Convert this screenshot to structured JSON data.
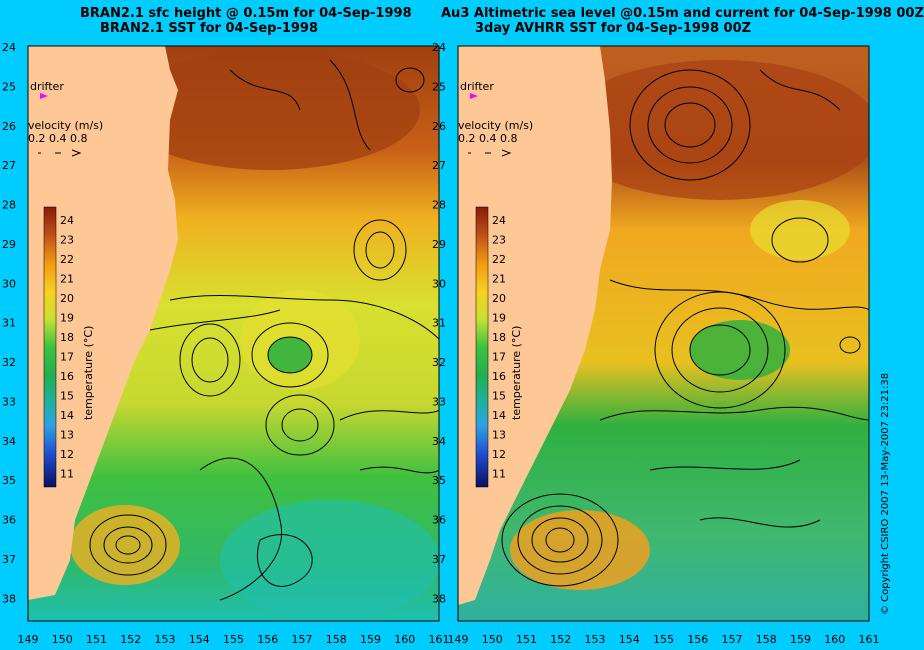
{
  "panels": [
    {
      "title_line1": "BRAN2.1 sfc height @ 0.15m for 04-Sep-1998",
      "title_line2": "BRAN2.1 SST for 04-Sep-1998",
      "drifter_label": "drifter",
      "velocity_label": "velocity (m/s)",
      "velocity_scale": "0.2 0.4 0.8",
      "colorbar_title": "temperature (°C)"
    },
    {
      "title_line1": "Au3 Altimetric sea level  @0.15m and current for 04-Sep-1998 00Z",
      "title_line2": "3day AVHRR SST for 04-Sep-1998 00Z",
      "drifter_label": "drifter",
      "velocity_label": "velocity (m/s)",
      "velocity_scale": "0.2 0.4 0.8",
      "colorbar_title": "temperature (°C)"
    }
  ],
  "axes": {
    "lat_ticks": [
      "24",
      "25",
      "26",
      "27",
      "28",
      "29",
      "30",
      "31",
      "32",
      "33",
      "34",
      "35",
      "36",
      "37",
      "38"
    ],
    "lon_ticks": [
      "149",
      "150",
      "151",
      "152",
      "153",
      "154",
      "155",
      "156",
      "157",
      "158",
      "159",
      "160",
      "161"
    ]
  },
  "colorbar_ticks": [
    "24",
    "23",
    "22",
    "21",
    "20",
    "19",
    "18",
    "17",
    "16",
    "15",
    "14",
    "13",
    "12",
    "11"
  ],
  "copyright": "© Copyright CSIRO 2007    13-May-2007 23:21:38",
  "colors": {
    "background": "#00cdfd",
    "land": "#fdc796",
    "drifter": "#ff00ff"
  }
}
